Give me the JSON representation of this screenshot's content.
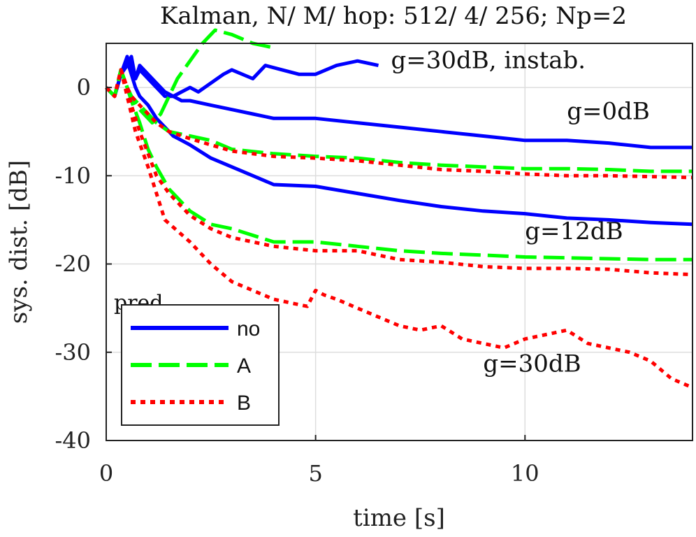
{
  "chart_data": {
    "type": "line",
    "title": "Kalman, N/ M/ hop: 512/ 4/ 256; Np=2",
    "xlabel": "time [s]",
    "ylabel": "sys. dist. [dB]",
    "xlim": [
      0,
      14
    ],
    "ylim": [
      -40,
      5
    ],
    "xticks": [
      0,
      5,
      10
    ],
    "yticks": [
      0,
      -10,
      -20,
      -30,
      -40
    ],
    "grid": true,
    "legend": {
      "title": "pred.",
      "placement": "lower-left",
      "entries": [
        {
          "label": "no",
          "color": "#0000ff",
          "style": "solid"
        },
        {
          "label": "A",
          "color": "#00ff00",
          "style": "dashed"
        },
        {
          "label": "B",
          "color": "#ff0000",
          "style": "dotted"
        }
      ]
    },
    "annotations": [
      {
        "text": "g=30dB, instab.",
        "x": 6.8,
        "y": 2.2
      },
      {
        "text": "g=0dB",
        "x": 11.0,
        "y": -3.6
      },
      {
        "text": "g=12dB",
        "x": 10.0,
        "y": -17.2
      },
      {
        "text": "g=30dB",
        "x": 9.0,
        "y": -32.2
      }
    ],
    "series": [
      {
        "name": "no, g=30dB (instab.)",
        "predictor": "no",
        "color": "#0000ff",
        "style": "solid",
        "x": [
          0,
          0.2,
          0.35,
          0.5,
          0.6,
          0.7,
          0.8,
          1.0,
          1.2,
          1.4,
          1.6,
          1.8,
          2.0,
          2.2,
          2.5,
          2.8,
          3.0,
          3.5,
          3.8,
          4.2,
          4.6,
          5.0,
          5.5,
          6.0,
          6.5
        ],
        "y": [
          0,
          -1,
          1.5,
          2.5,
          3.5,
          1,
          2.5,
          1.5,
          0.5,
          -0.5,
          -1,
          -0.5,
          0,
          -0.5,
          0.5,
          1.5,
          2,
          1,
          2.5,
          2,
          1.5,
          1.5,
          2.5,
          3,
          2.5
        ]
      },
      {
        "name": "no, g=0dB",
        "predictor": "no",
        "color": "#0000ff",
        "style": "solid",
        "x": [
          0,
          0.2,
          0.35,
          0.5,
          0.6,
          0.7,
          0.8,
          1.0,
          1.2,
          1.4,
          1.6,
          1.8,
          2.0,
          2.5,
          3.0,
          3.5,
          4.0,
          5.0,
          6.0,
          7.0,
          8.0,
          9.0,
          10.0,
          11.0,
          12.0,
          13.0,
          14.0
        ],
        "y": [
          0,
          -1,
          1.5,
          3.5,
          2,
          1,
          2,
          1,
          0,
          -1,
          -1,
          -1.5,
          -1.5,
          -2,
          -2.5,
          -3,
          -3.5,
          -3.5,
          -4,
          -4.5,
          -5,
          -5.5,
          -6,
          -6,
          -6.3,
          -6.8,
          -6.8
        ]
      },
      {
        "name": "no, g=12dB",
        "predictor": "no",
        "color": "#0000ff",
        "style": "solid",
        "x": [
          0,
          0.2,
          0.35,
          0.5,
          0.6,
          0.7,
          0.8,
          1.0,
          1.2,
          1.4,
          1.6,
          1.8,
          2.0,
          2.5,
          3.0,
          3.5,
          4.0,
          5.0,
          6.0,
          7.0,
          8.0,
          9.0,
          10.0,
          11.0,
          12.0,
          13.0,
          14.0
        ],
        "y": [
          0,
          -1,
          1.5,
          3,
          1.5,
          0,
          -1,
          -2,
          -3.5,
          -4.5,
          -5.5,
          -6,
          -6.5,
          -8,
          -9,
          -10,
          -11,
          -11.2,
          -12,
          -12.8,
          -13.5,
          -14,
          -14.3,
          -14.8,
          -15,
          -15.3,
          -15.5
        ]
      },
      {
        "name": "A, g=30dB (instab.)",
        "predictor": "A",
        "color": "#00ff00",
        "style": "dashed",
        "x": [
          0,
          0.2,
          0.35,
          0.5,
          0.7,
          0.9,
          1.1,
          1.3,
          1.5,
          1.7,
          2.0,
          2.3,
          2.6,
          3.0,
          3.5,
          4.0
        ],
        "y": [
          0,
          -1,
          2,
          0,
          -2,
          -3,
          -4,
          -3,
          -1,
          1,
          3,
          5,
          6.5,
          6,
          5,
          4.5
        ]
      },
      {
        "name": "A, g=0dB",
        "predictor": "A",
        "color": "#00ff00",
        "style": "dashed",
        "x": [
          0,
          0.2,
          0.35,
          0.5,
          0.6,
          0.8,
          1.0,
          1.2,
          1.5,
          2.0,
          2.5,
          3.0,
          4.0,
          5.0,
          6.0,
          7.0,
          8.0,
          9.0,
          10.0,
          11.0,
          12.0,
          13.0,
          14.0
        ],
        "y": [
          0,
          -1,
          2,
          0,
          -1,
          -2,
          -3,
          -4,
          -5,
          -5.5,
          -6,
          -7,
          -7.5,
          -7.8,
          -8,
          -8.5,
          -8.8,
          -9,
          -9.2,
          -9.2,
          -9.3,
          -9.5,
          -9.5
        ]
      },
      {
        "name": "A, g=12dB",
        "predictor": "A",
        "color": "#00ff00",
        "style": "dashed",
        "x": [
          0,
          0.2,
          0.35,
          0.5,
          0.6,
          0.8,
          1.0,
          1.2,
          1.5,
          2.0,
          2.5,
          3.0,
          4.0,
          5.0,
          6.0,
          7.0,
          8.0,
          9.0,
          10.0,
          11.0,
          12.0,
          13.0,
          14.0
        ],
        "y": [
          0,
          -1,
          2,
          0,
          -1.5,
          -4,
          -7,
          -9,
          -11.5,
          -14,
          -15.5,
          -16,
          -17.5,
          -17.5,
          -18,
          -18.5,
          -18.8,
          -19,
          -19.2,
          -19.3,
          -19.4,
          -19.5,
          -19.5
        ]
      },
      {
        "name": "B, g=0dB",
        "predictor": "B",
        "color": "#ff0000",
        "style": "dotted",
        "x": [
          0,
          0.2,
          0.35,
          0.5,
          0.6,
          0.8,
          1.0,
          1.2,
          1.5,
          2.0,
          2.5,
          3.0,
          4.0,
          5.0,
          6.0,
          7.0,
          8.0,
          9.0,
          10.0,
          11.0,
          12.0,
          13.0,
          14.0
        ],
        "y": [
          0,
          -1,
          2,
          0,
          -1,
          -2,
          -3,
          -4,
          -5,
          -5.8,
          -6.5,
          -7.2,
          -7.8,
          -8,
          -8.3,
          -8.8,
          -9.3,
          -9.5,
          -9.8,
          -10,
          -10,
          -10.1,
          -10.2
        ]
      },
      {
        "name": "B, g=12dB",
        "predictor": "B",
        "color": "#ff0000",
        "style": "dotted",
        "x": [
          0,
          0.2,
          0.35,
          0.5,
          0.6,
          0.8,
          1.0,
          1.2,
          1.5,
          2.0,
          2.5,
          3.0,
          4.0,
          5.0,
          6.0,
          7.0,
          8.0,
          9.0,
          10.0,
          11.0,
          12.0,
          13.0,
          14.0
        ],
        "y": [
          0,
          -1,
          2,
          0,
          -2,
          -5,
          -7.5,
          -10,
          -12,
          -14.5,
          -16,
          -17,
          -18,
          -18.5,
          -18.5,
          -19.5,
          -19.8,
          -20.3,
          -20.5,
          -20.5,
          -20.6,
          -21,
          -21.2
        ]
      },
      {
        "name": "B, g=30dB",
        "predictor": "B",
        "color": "#ff0000",
        "style": "dotted",
        "x": [
          0,
          0.2,
          0.35,
          0.5,
          0.7,
          1.0,
          1.4,
          2.0,
          2.5,
          3.0,
          3.5,
          4.0,
          4.5,
          4.8,
          5.0,
          5.2,
          5.5,
          6.0,
          6.5,
          7.0,
          7.5,
          8.0,
          8.5,
          9.0,
          9.5,
          10.0,
          10.5,
          11.0,
          11.5,
          12.0,
          12.5,
          13.0,
          13.5,
          14.0
        ],
        "y": [
          0,
          -1,
          2,
          -1,
          -5,
          -9,
          -15,
          -17.5,
          -20,
          -22,
          -23,
          -24,
          -24.5,
          -24.8,
          -23,
          -23.5,
          -24,
          -25,
          -26,
          -27,
          -27.5,
          -27,
          -28.5,
          -29,
          -29.5,
          -28.5,
          -28,
          -27.5,
          -29,
          -29.5,
          -30,
          -31,
          -33,
          -34
        ]
      }
    ]
  }
}
